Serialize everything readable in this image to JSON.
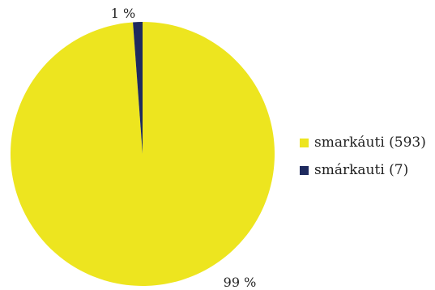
{
  "chart_data": {
    "type": "pie",
    "slices": [
      {
        "label": "smarkáuti",
        "count": 593,
        "percent_label": "99 %",
        "color": "#ede51f"
      },
      {
        "label": "smárkauti",
        "count": 7,
        "percent_label": "1 %",
        "color": "#1e2a5e"
      }
    ],
    "legend": [
      {
        "text": "smarkáuti (593)",
        "color": "#ede51f"
      },
      {
        "text": "smárkauti (7)",
        "color": "#1e2a5e"
      }
    ],
    "legend_position": "right"
  }
}
